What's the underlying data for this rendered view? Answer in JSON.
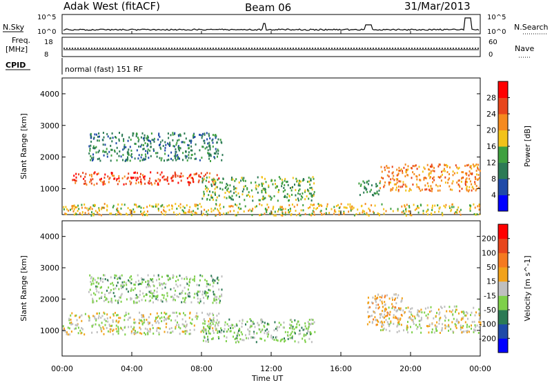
{
  "header": {
    "station": "Adak West (fitACF)",
    "beam": "Beam 06",
    "date": "31/Mar/2013"
  },
  "status_panel": {
    "left_labels": {
      "nsky": "N.Sky",
      "freq_line1": "Freq.",
      "freq_line2": "[MHz]",
      "cpid": "CPID"
    },
    "right_labels": {
      "nsearch": "N.Search",
      "nave": "Nave"
    },
    "noise_ticks": {
      "top": "10^5",
      "bottom": "10^0"
    },
    "freq_ticks": {
      "top": "18",
      "bottom": "8"
    },
    "nave_ticks": {
      "top": "60",
      "bottom": "0"
    },
    "cpid_text": "normal (fast) 151 RF"
  },
  "chart_data": [
    {
      "type": "heatmap",
      "name": "power",
      "ylabel": "Slant Range [km]",
      "ylim": [
        180,
        4500
      ],
      "yticks": [
        "4000",
        "3000",
        "2000",
        "1000"
      ],
      "colorbar_label": "Power [dB]",
      "colorbar_ticks": [
        "28",
        "24",
        "20",
        "16",
        "12",
        "8",
        "4"
      ],
      "colors": [
        "#0000ff",
        "#1f4aa8",
        "#2c7a55",
        "#3fa040",
        "#f2c21a",
        "#f58a1f",
        "#e8461c",
        "#ff0000"
      ],
      "bands": [
        {
          "x": [
            0.5,
            9.0
          ],
          "y": [
            1150,
            1550
          ],
          "value": 26
        },
        {
          "x": [
            1.5,
            9.2
          ],
          "y": [
            1900,
            2800
          ],
          "value": 10
        },
        {
          "x": [
            8.0,
            14.5
          ],
          "y": [
            650,
            1400
          ],
          "value": 14
        },
        {
          "x": [
            18.2,
            24.0
          ],
          "y": [
            950,
            1800
          ],
          "value": 22
        },
        {
          "x": [
            17.0,
            18.2
          ],
          "y": [
            800,
            1300
          ],
          "value": 12
        },
        {
          "x": [
            0.0,
            24.0
          ],
          "y": [
            180,
            550
          ],
          "value": 18
        }
      ]
    },
    {
      "type": "heatmap",
      "name": "velocity",
      "ylabel": "Slant Range [km]",
      "ylim": [
        180,
        4500
      ],
      "yticks": [
        "4000",
        "3000",
        "2000",
        "1000"
      ],
      "colorbar_label": "Velocity [m s^-1]",
      "colorbar_ticks": [
        "200",
        "100",
        "50",
        "15",
        "-15",
        "-50",
        "-100",
        "-200"
      ],
      "colors": [
        "#0000ff",
        "#1f4aa8",
        "#2c7a55",
        "#7ed04a",
        "#bfbfbf",
        "#f2a21a",
        "#f57a1f",
        "#e8461c",
        "#ff0000"
      ],
      "bands": [
        {
          "x": [
            0.0,
            9.0
          ],
          "y": [
            900,
            1600
          ],
          "value": 0
        },
        {
          "x": [
            1.5,
            9.2
          ],
          "y": [
            1900,
            2800
          ],
          "value": -40
        },
        {
          "x": [
            8.0,
            14.5
          ],
          "y": [
            650,
            1400
          ],
          "value": -40
        },
        {
          "x": [
            18.2,
            24.0
          ],
          "y": [
            950,
            1800
          ],
          "value": 0
        },
        {
          "x": [
            17.5,
            19.5
          ],
          "y": [
            1200,
            2200
          ],
          "value": 40
        }
      ]
    }
  ],
  "time_axis": {
    "xlim": [
      0,
      24
    ],
    "ticks": [
      "00:00",
      "04:00",
      "08:00",
      "12:00",
      "16:00",
      "20:00",
      "00:00"
    ],
    "label": "Time UT"
  }
}
